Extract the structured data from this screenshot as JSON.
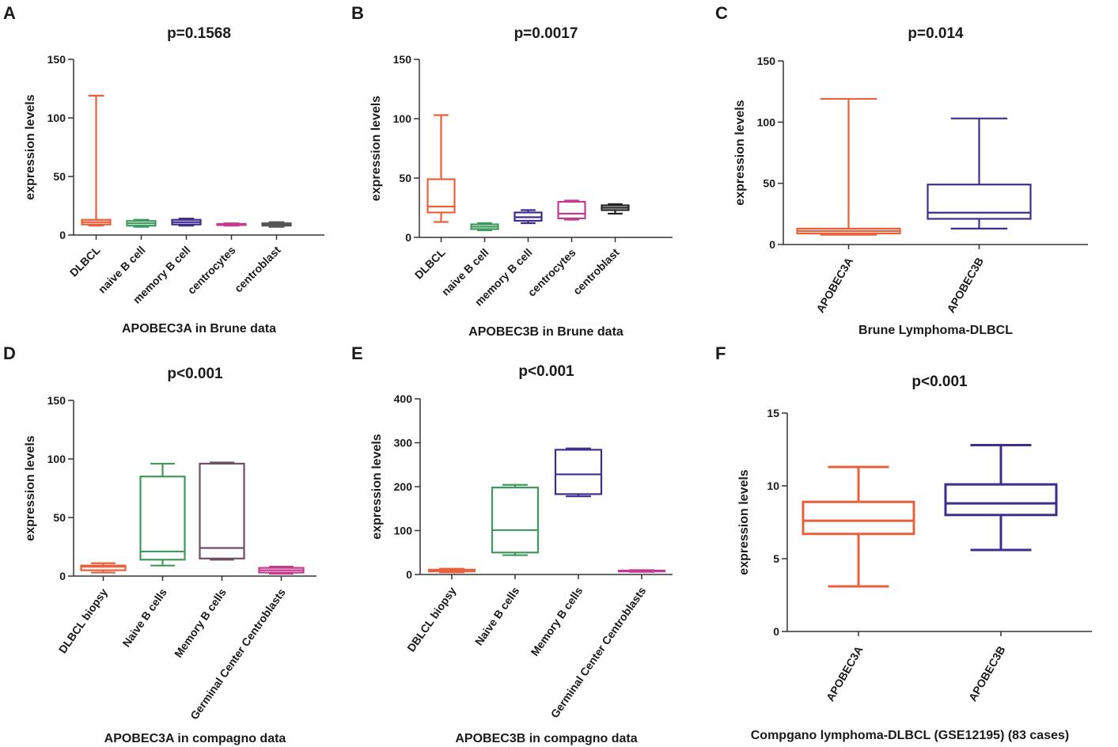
{
  "chart_data": [
    {
      "panel_label": "A",
      "type": "boxplot",
      "title": "p=0.1568",
      "ylabel": "expression levels",
      "xlabel": "APOBEC3A in Brune data",
      "ylim": [
        0,
        150
      ],
      "yticks": [
        "0",
        "50",
        "100",
        "150"
      ],
      "categories": [
        "DLBCL",
        "naive B cell",
        "memory B cell",
        "centrocytes",
        "centroblast"
      ],
      "colors": [
        "#e8603c",
        "#3e9a5c",
        "#3f2c8c",
        "#c43a8e",
        "#555555"
      ],
      "boxes": [
        {
          "min": 8,
          "q1": 9,
          "median": 11,
          "q3": 13,
          "max": 119
        },
        {
          "min": 7,
          "q1": 8,
          "median": 10,
          "q3": 12,
          "max": 13
        },
        {
          "min": 8,
          "q1": 9,
          "median": 11,
          "q3": 13,
          "max": 14
        },
        {
          "min": 8,
          "q1": 8.5,
          "median": 9,
          "q3": 9.5,
          "max": 10
        },
        {
          "min": 7,
          "q1": 8,
          "median": 9,
          "q3": 10,
          "max": 11
        }
      ]
    },
    {
      "panel_label": "B",
      "type": "boxplot",
      "title": "p=0.0017",
      "ylabel": "expression levels",
      "xlabel": "APOBEC3B in Brune data",
      "ylim": [
        0,
        150
      ],
      "yticks": [
        "0",
        "50",
        "100",
        "150"
      ],
      "categories": [
        "DLBCL",
        "naive B cell",
        "memory B cell",
        "centrocytes",
        "centroblast"
      ],
      "colors": [
        "#e8603c",
        "#3e9a5c",
        "#3f2c8c",
        "#c43a8e",
        "#222222"
      ],
      "boxes": [
        {
          "min": 13,
          "q1": 21,
          "median": 26,
          "q3": 49,
          "max": 103
        },
        {
          "min": 6,
          "q1": 7,
          "median": 9,
          "q3": 11,
          "max": 12
        },
        {
          "min": 12,
          "q1": 14,
          "median": 17,
          "q3": 21,
          "max": 23
        },
        {
          "min": 15,
          "q1": 16,
          "median": 20,
          "q3": 30,
          "max": 31
        },
        {
          "min": 20,
          "q1": 23,
          "median": 25,
          "q3": 27,
          "max": 28
        }
      ]
    },
    {
      "panel_label": "C",
      "type": "boxplot",
      "title": "p=0.014",
      "ylabel": "expression levels",
      "xlabel": "Brune Lymphoma-DLBCL",
      "ylim": [
        0,
        150
      ],
      "yticks": [
        "0",
        "50",
        "100",
        "150"
      ],
      "categories": [
        "APOBEC3A",
        "APOBEC3B"
      ],
      "colors": [
        "#e8603c",
        "#3f2c8c"
      ],
      "boxes": [
        {
          "min": 8,
          "q1": 9,
          "median": 11,
          "q3": 13,
          "max": 119
        },
        {
          "min": 13,
          "q1": 21,
          "median": 26,
          "q3": 49,
          "max": 103
        }
      ]
    },
    {
      "panel_label": "D",
      "type": "boxplot",
      "title": "p<0.001",
      "ylabel": "expression levels",
      "xlabel": "APOBEC3A in compagno data",
      "ylim": [
        0,
        150
      ],
      "yticks": [
        "0",
        "50",
        "100",
        "150"
      ],
      "categories": [
        "DLBCL biopsy",
        "Naive B cells",
        "Memory B cells",
        "Germinal Center Centroblasts"
      ],
      "colors": [
        "#e8603c",
        "#3e9a5c",
        "#6e4e63",
        "#c43a8e"
      ],
      "boxes": [
        {
          "min": 3,
          "q1": 5,
          "median": 8,
          "q3": 9,
          "max": 11
        },
        {
          "min": 9,
          "q1": 14,
          "median": 21,
          "q3": 85,
          "max": 96
        },
        {
          "min": 14,
          "q1": 15,
          "median": 24,
          "q3": 96,
          "max": 97
        },
        {
          "min": 2,
          "q1": 3,
          "median": 5,
          "q3": 7,
          "max": 8
        }
      ]
    },
    {
      "panel_label": "E",
      "type": "boxplot",
      "title": "p<0.001",
      "ylabel": "expression levels",
      "xlabel": "APOBEC3B in compagno data",
      "ylim": [
        0,
        400
      ],
      "yticks": [
        "0",
        "100",
        "200",
        "300",
        "400"
      ],
      "categories": [
        "DBLCL biopsy",
        "Naive B cells",
        "Memory B cells",
        "Germinal Center Centroblasts"
      ],
      "colors": [
        "#e8603c",
        "#3e9a5c",
        "#3f2c8c",
        "#c43a8e"
      ],
      "boxes": [
        {
          "min": 5,
          "q1": 7,
          "median": 9,
          "q3": 11,
          "max": 13
        },
        {
          "min": 44,
          "q1": 50,
          "median": 101,
          "q3": 198,
          "max": 204
        },
        {
          "min": 178,
          "q1": 183,
          "median": 228,
          "q3": 284,
          "max": 287
        },
        {
          "min": 6,
          "q1": 7,
          "median": 8,
          "q3": 9,
          "max": 10
        }
      ]
    },
    {
      "panel_label": "F",
      "type": "boxplot",
      "title": "p<0.001",
      "ylabel": "expression levels",
      "xlabel": "Compgano lymphoma-DLBCL (GSE12195) (83 cases)",
      "ylim": [
        0,
        15
      ],
      "yticks": [
        "0",
        "5",
        "10",
        "15"
      ],
      "categories": [
        "APOBEC3A",
        "APOBEC3B"
      ],
      "colors": [
        "#e8603c",
        "#3f2c8c"
      ],
      "boxes": [
        {
          "min": 3.1,
          "q1": 6.7,
          "median": 7.6,
          "q3": 8.9,
          "max": 11.3
        },
        {
          "min": 5.6,
          "q1": 8.0,
          "median": 8.8,
          "q3": 10.1,
          "max": 12.8
        }
      ]
    }
  ]
}
